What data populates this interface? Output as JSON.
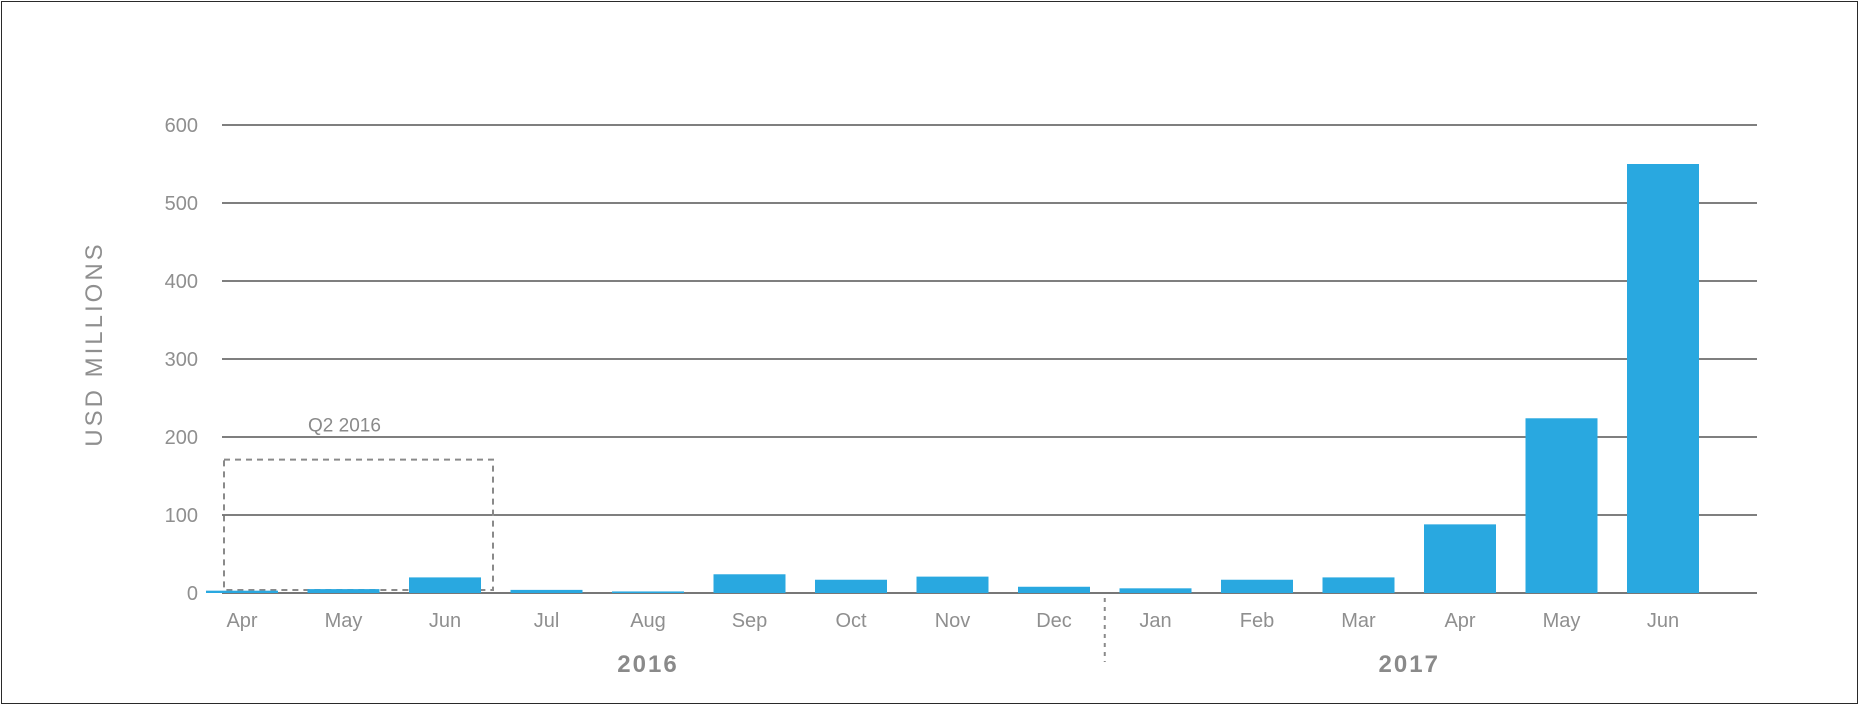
{
  "chart_data": {
    "type": "bar",
    "title": "",
    "xlabel": "",
    "ylabel": "USD MILLIONS",
    "ylim": [
      0,
      600
    ],
    "yticks": [
      0,
      100,
      200,
      300,
      400,
      500,
      600
    ],
    "grid": true,
    "bar_color": "#29a8e0",
    "grid_color": "#555555",
    "categories": [
      "Apr",
      "May",
      "Jun",
      "Jul",
      "Aug",
      "Sep",
      "Oct",
      "Nov",
      "Dec",
      "Jan",
      "Feb",
      "Mar",
      "Apr",
      "May",
      "Jun"
    ],
    "values": [
      3,
      5,
      20,
      4,
      2,
      24,
      17,
      21,
      8,
      6,
      17,
      20,
      88,
      224,
      550
    ],
    "groups": [
      {
        "label": "2016",
        "start": 0,
        "end": 8
      },
      {
        "label": "2017",
        "start": 9,
        "end": 14
      }
    ],
    "annotations": [
      {
        "label": "Q2 2016",
        "start": 0,
        "end": 2,
        "top_value": 171
      }
    ]
  }
}
